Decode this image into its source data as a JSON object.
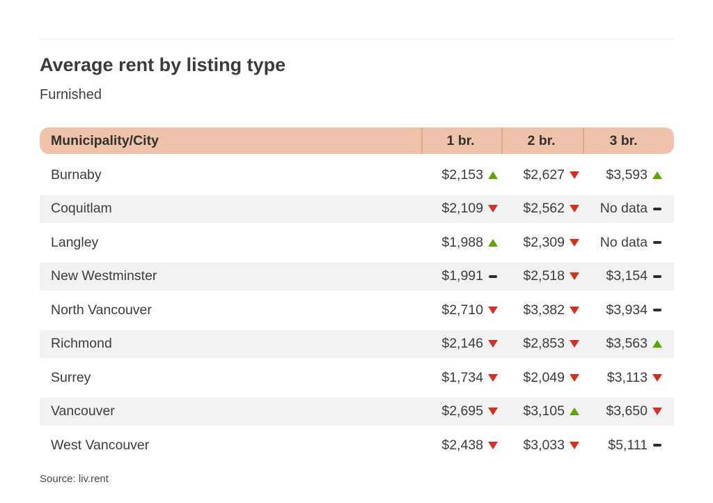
{
  "page": {
    "title": "Average rent by listing type",
    "subtitle": "Furnished",
    "source": "Source: liv.rent"
  },
  "colors": {
    "header_bg": "#efc3ab",
    "header_divider": "#e0a88b",
    "row_alt_bg": "#f2f2f2",
    "trend_up": "#5fa405",
    "trend_down": "#d62f1f",
    "trend_flat": "#2d2d2d"
  },
  "table": {
    "columns": [
      "Municipality/City",
      "1 br.",
      "2 br.",
      "3 br."
    ],
    "rows": [
      {
        "name": "Burnaby",
        "cells": [
          {
            "value": "$2,153",
            "trend": "up"
          },
          {
            "value": "$2,627",
            "trend": "down"
          },
          {
            "value": "$3,593",
            "trend": "up"
          }
        ]
      },
      {
        "name": "Coquitlam",
        "cells": [
          {
            "value": "$2,109",
            "trend": "down"
          },
          {
            "value": "$2,562",
            "trend": "down"
          },
          {
            "value": "No data",
            "trend": "flat"
          }
        ]
      },
      {
        "name": "Langley",
        "cells": [
          {
            "value": "$1,988",
            "trend": "up"
          },
          {
            "value": "$2,309",
            "trend": "down"
          },
          {
            "value": "No data",
            "trend": "flat"
          }
        ]
      },
      {
        "name": "New Westminster",
        "cells": [
          {
            "value": "$1,991",
            "trend": "flat"
          },
          {
            "value": "$2,518",
            "trend": "down"
          },
          {
            "value": "$3,154",
            "trend": "flat"
          }
        ]
      },
      {
        "name": "North Vancouver",
        "cells": [
          {
            "value": "$2,710",
            "trend": "down"
          },
          {
            "value": "$3,382",
            "trend": "down"
          },
          {
            "value": "$3,934",
            "trend": "flat"
          }
        ]
      },
      {
        "name": "Richmond",
        "cells": [
          {
            "value": "$2,146",
            "trend": "down"
          },
          {
            "value": "$2,853",
            "trend": "down"
          },
          {
            "value": "$3,563",
            "trend": "up"
          }
        ]
      },
      {
        "name": "Surrey",
        "cells": [
          {
            "value": "$1,734",
            "trend": "down"
          },
          {
            "value": "$2,049",
            "trend": "down"
          },
          {
            "value": "$3,113",
            "trend": "down"
          }
        ]
      },
      {
        "name": "Vancouver",
        "cells": [
          {
            "value": "$2,695",
            "trend": "down"
          },
          {
            "value": "$3,105",
            "trend": "up"
          },
          {
            "value": "$3,650",
            "trend": "down"
          }
        ]
      },
      {
        "name": "West Vancouver",
        "cells": [
          {
            "value": "$2,438",
            "trend": "down"
          },
          {
            "value": "$3,033",
            "trend": "down"
          },
          {
            "value": "$5,111",
            "trend": "flat"
          }
        ]
      }
    ]
  },
  "chart_data": {
    "type": "table",
    "title": "Average rent by listing type",
    "subtitle": "Furnished",
    "columns": [
      "Municipality/City",
      "1 br.",
      "2 br.",
      "3 br."
    ],
    "rows": [
      {
        "municipality": "Burnaby",
        "values": [
          2153,
          2627,
          3593
        ],
        "trends": [
          "up",
          "down",
          "up"
        ]
      },
      {
        "municipality": "Coquitlam",
        "values": [
          2109,
          2562,
          null
        ],
        "trends": [
          "down",
          "down",
          "flat"
        ]
      },
      {
        "municipality": "Langley",
        "values": [
          1988,
          2309,
          null
        ],
        "trends": [
          "up",
          "down",
          "flat"
        ]
      },
      {
        "municipality": "New Westminster",
        "values": [
          1991,
          2518,
          3154
        ],
        "trends": [
          "flat",
          "down",
          "flat"
        ]
      },
      {
        "municipality": "North Vancouver",
        "values": [
          2710,
          3382,
          3934
        ],
        "trends": [
          "down",
          "down",
          "flat"
        ]
      },
      {
        "municipality": "Richmond",
        "values": [
          2146,
          2853,
          3563
        ],
        "trends": [
          "down",
          "down",
          "up"
        ]
      },
      {
        "municipality": "Surrey",
        "values": [
          1734,
          2049,
          3113
        ],
        "trends": [
          "down",
          "down",
          "down"
        ]
      },
      {
        "municipality": "Vancouver",
        "values": [
          2695,
          3105,
          3650
        ],
        "trends": [
          "down",
          "up",
          "down"
        ]
      },
      {
        "municipality": "West Vancouver",
        "values": [
          2438,
          3033,
          5111
        ],
        "trends": [
          "down",
          "down",
          "flat"
        ]
      }
    ],
    "source": "Source: liv.rent"
  }
}
